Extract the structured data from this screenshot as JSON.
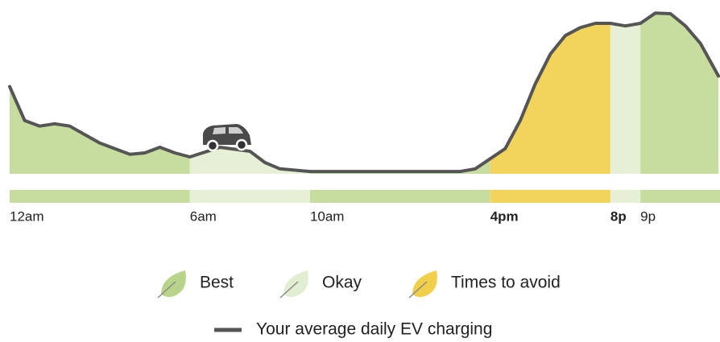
{
  "chart_data": {
    "type": "area",
    "x": [
      0,
      0.5,
      1,
      1.5,
      2,
      3,
      4,
      4.5,
      5,
      5.5,
      6,
      7,
      8,
      8.5,
      9,
      10,
      15,
      15.5,
      16.5,
      17,
      17.5,
      18,
      18.5,
      19,
      19.5,
      20,
      20.5,
      21,
      21.5,
      22,
      22.5,
      23,
      23.6
    ],
    "series": [
      {
        "name": "Your average daily EV charging",
        "color": "#555555",
        "values": [
          2.63,
          1.61,
          1.44,
          1.51,
          1.44,
          0.93,
          0.59,
          0.63,
          0.8,
          0.63,
          0.51,
          0.8,
          0.68,
          0.34,
          0.15,
          0.07,
          0.07,
          0.15,
          0.76,
          1.61,
          2.71,
          3.61,
          4.17,
          4.41,
          4.54,
          4.54,
          4.46,
          4.54,
          4.85,
          4.83,
          4.46,
          3.93,
          2.95
        ]
      }
    ],
    "bands": [
      {
        "start": 0,
        "end": 6,
        "color": "#c7dd9f"
      },
      {
        "start": 6,
        "end": 10,
        "color": "#e5f0d6"
      },
      {
        "start": 10,
        "end": 16,
        "color": "#c7dd9f"
      },
      {
        "start": 16,
        "end": 20,
        "color": "#f2d35c"
      },
      {
        "start": 20,
        "end": 21,
        "color": "#e5f0d6"
      },
      {
        "start": 21,
        "end": 23.65,
        "color": "#c7dd9f"
      }
    ],
    "legend": [
      {
        "name": "Best",
        "color": "#b8d48a"
      },
      {
        "name": "Okay",
        "color": "#e2eed2"
      },
      {
        "name": "Times to avoid",
        "color": "#f2cf4a"
      }
    ],
    "xlim": [
      0,
      23.65
    ],
    "xticks": [
      {
        "value": 0,
        "label": "12am"
      },
      {
        "value": 6,
        "label": "6am"
      },
      {
        "value": 10,
        "label": "10am"
      },
      {
        "value": 16,
        "label": "4pm",
        "bold": true
      },
      {
        "value": 20,
        "label": "8p",
        "bold": true
      },
      {
        "value": 21,
        "label": "9p"
      }
    ],
    "ylim": [
      0,
      5
    ],
    "yticks": [
      0,
      1,
      2,
      3,
      4,
      5
    ],
    "grid": true
  }
}
